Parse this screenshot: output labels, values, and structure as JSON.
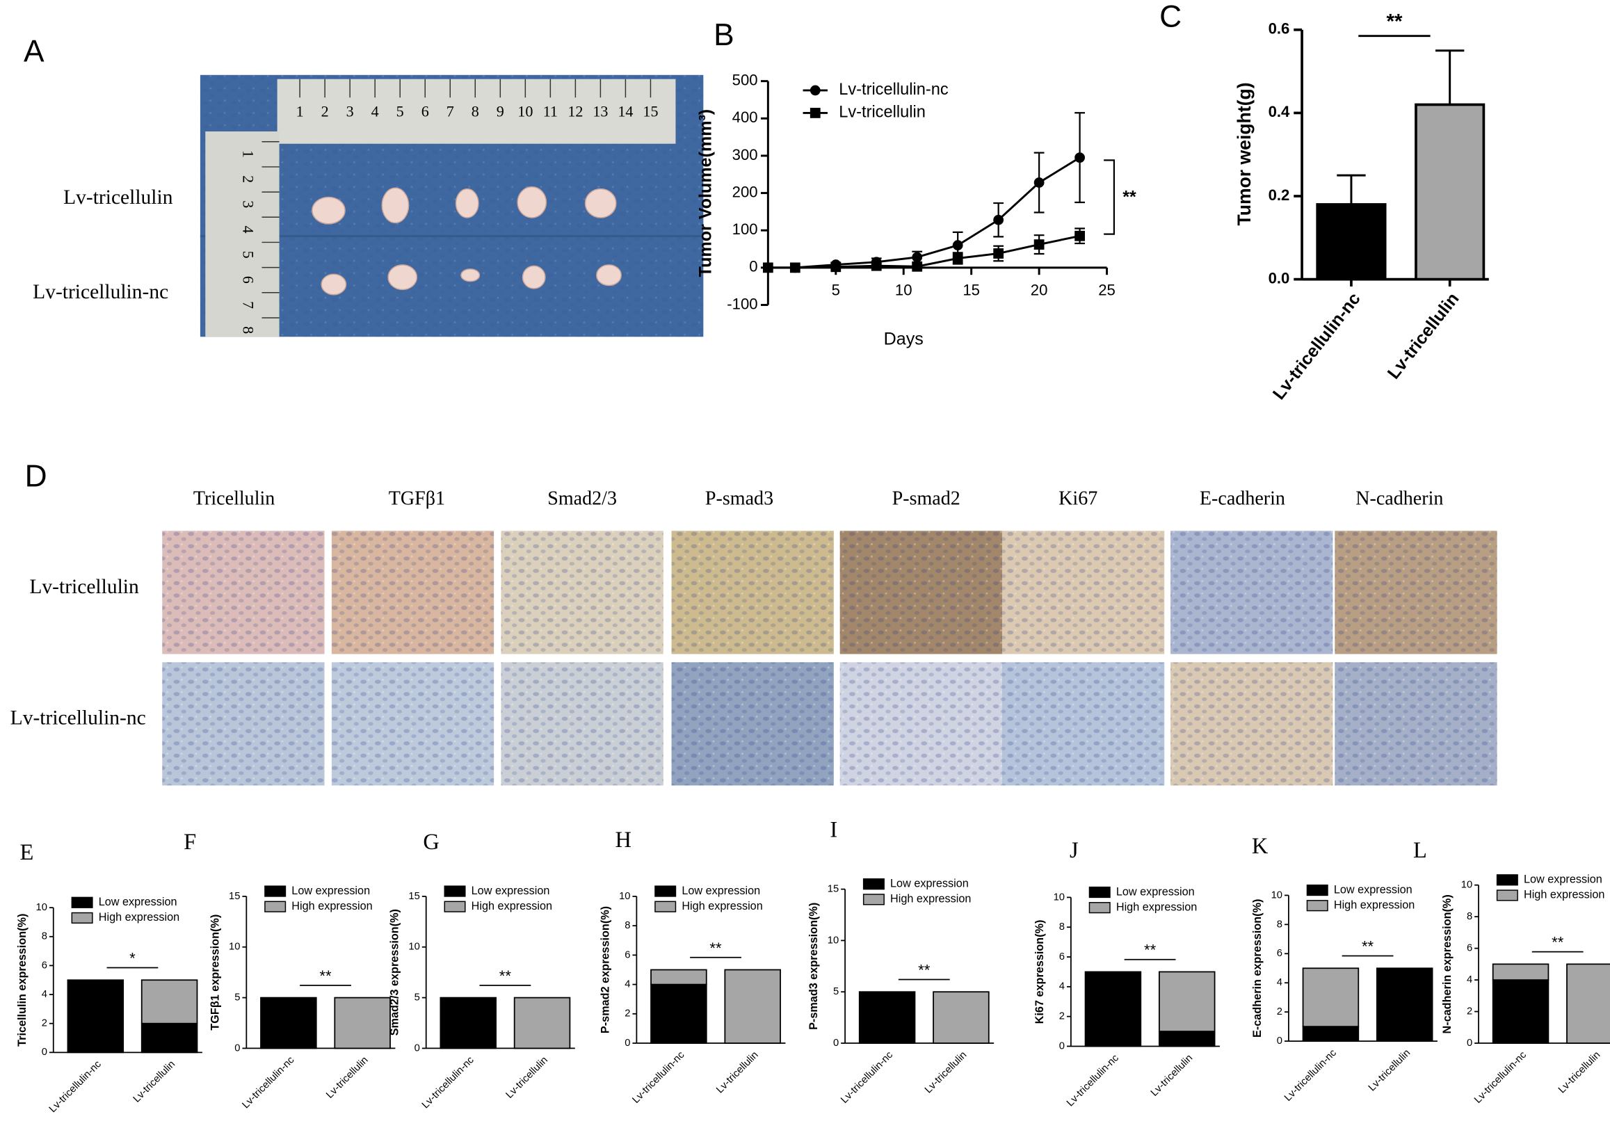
{
  "panel_A": {
    "panel": "A",
    "row_labels": [
      "Lv-tricellulin",
      "Lv-tricellulin-nc"
    ],
    "ruler_top": [
      "1",
      "2",
      "3",
      "4",
      "5",
      "6",
      "7",
      "8",
      "9",
      "10",
      "11",
      "12",
      "13",
      "14",
      "15"
    ],
    "ruler_side": [
      "1",
      "2",
      "3",
      "4",
      "5",
      "6",
      "7",
      "8"
    ]
  },
  "panel_D": {
    "panel": "D",
    "columns": [
      "Tricellulin",
      "TGFβ1",
      "Smad2/3",
      "P-smad3",
      "P-smad2",
      "Ki67",
      "E-cadherin",
      "N-cadherin"
    ],
    "rows": [
      "Lv-tricellulin",
      "Lv-tricellulin-nc"
    ]
  },
  "chart_data": [
    {
      "type": "line",
      "panel": "B",
      "xlabel": "Days",
      "ylabel": "Tumor Volume(mm³)",
      "xlim": [
        0,
        25
      ],
      "xticks": [
        5,
        10,
        15,
        20,
        25
      ],
      "ylim": [
        -100,
        500
      ],
      "yticks": [
        -100,
        0,
        100,
        200,
        300,
        400,
        500
      ],
      "annotation": "**",
      "x": [
        0,
        2,
        5,
        8,
        11,
        14,
        17,
        20,
        23
      ],
      "series": [
        {
          "name": "Lv-tricellulin-nc",
          "color": "#000000",
          "marker": "circle",
          "values": [
            0,
            0,
            8,
            15,
            28,
            60,
            128,
            228,
            295
          ],
          "errors": [
            0,
            0,
            5,
            10,
            15,
            35,
            45,
            80,
            120
          ]
        },
        {
          "name": "Lv-tricellulin",
          "color": "#000000",
          "marker": "square",
          "values": [
            0,
            0,
            2,
            5,
            3,
            25,
            38,
            62,
            85
          ],
          "errors": [
            0,
            0,
            3,
            5,
            5,
            15,
            20,
            25,
            20
          ]
        }
      ]
    },
    {
      "type": "bar",
      "panel": "C",
      "ylabel": "Tumor weight(g)",
      "categories": [
        "Lv-tricellulin-nc",
        "Lv-tricellulin"
      ],
      "values": [
        0.18,
        0.42
      ],
      "errors": [
        0.07,
        0.13
      ],
      "colors": [
        "#000000",
        "#a6a6a6"
      ],
      "ylim": [
        0,
        0.6
      ],
      "yticks": [
        {
          "value": 0,
          "label": "0.0"
        },
        0.2,
        0.4,
        0.6
      ],
      "annotation": "**"
    },
    {
      "type": "bar",
      "stacked": true,
      "panel": "E",
      "ylabel": "Tricellulin expression(%)",
      "categories": [
        "Lv-tricellulin-nc",
        "Lv-tricellulin"
      ],
      "series": [
        {
          "name": "Low expression",
          "color": "#000000",
          "values": [
            5,
            2
          ]
        },
        {
          "name": "High expression",
          "color": "#a6a6a6",
          "values": [
            0,
            3
          ]
        }
      ],
      "ylim": [
        0,
        10
      ],
      "yticks": [
        0,
        2,
        4,
        6,
        8,
        10
      ],
      "annotation": "*"
    },
    {
      "type": "bar",
      "stacked": true,
      "panel": "F",
      "ylabel": "TGFβ1 expression(%)",
      "categories": [
        "Lv-tricellulin-nc",
        "Lv-tricellulin"
      ],
      "series": [
        {
          "name": "Low expression",
          "color": "#000000",
          "values": [
            5,
            0
          ]
        },
        {
          "name": "High expression",
          "color": "#a6a6a6",
          "values": [
            0,
            5
          ]
        }
      ],
      "ylim": [
        0,
        15
      ],
      "yticks": [
        0,
        5,
        10,
        15
      ],
      "annotation": "**"
    },
    {
      "type": "bar",
      "stacked": true,
      "panel": "G",
      "ylabel": "Smad2/3 expression(%)",
      "categories": [
        "Lv-tricellulin-nc",
        "Lv-tricellulin"
      ],
      "series": [
        {
          "name": "Low expression",
          "color": "#000000",
          "values": [
            5,
            0
          ]
        },
        {
          "name": "High expression",
          "color": "#a6a6a6",
          "values": [
            0,
            5
          ]
        }
      ],
      "ylim": [
        0,
        15
      ],
      "yticks": [
        0,
        5,
        10,
        15
      ],
      "annotation": "**"
    },
    {
      "type": "bar",
      "stacked": true,
      "panel": "H",
      "ylabel": "P-smad2 expression(%)",
      "categories": [
        "Lv-tricellulin-nc",
        "Lv-tricellulin"
      ],
      "series": [
        {
          "name": "Low expression",
          "color": "#000000",
          "values": [
            4,
            0
          ]
        },
        {
          "name": "High expression",
          "color": "#a6a6a6",
          "values": [
            1,
            5
          ]
        }
      ],
      "ylim": [
        0,
        10
      ],
      "yticks": [
        0,
        2,
        4,
        6,
        8,
        10
      ],
      "annotation": "**"
    },
    {
      "type": "bar",
      "stacked": true,
      "panel": "I",
      "ylabel": "P-smad3 expression(%)",
      "categories": [
        "Lv-tricellulin-nc",
        "Lv-tricellulin"
      ],
      "series": [
        {
          "name": "Low expression",
          "color": "#000000",
          "values": [
            5,
            0
          ]
        },
        {
          "name": "High expression",
          "color": "#a6a6a6",
          "values": [
            0,
            5
          ]
        }
      ],
      "ylim": [
        0,
        15
      ],
      "yticks": [
        0,
        5,
        10,
        15
      ],
      "annotation": "**"
    },
    {
      "type": "bar",
      "stacked": true,
      "panel": "J",
      "ylabel": "Ki67 expression(%)",
      "categories": [
        "Lv-tricellulin-nc",
        "Lv-tricellulin"
      ],
      "series": [
        {
          "name": "Low expression",
          "color": "#000000",
          "values": [
            5,
            1
          ]
        },
        {
          "name": "High expression",
          "color": "#a6a6a6",
          "values": [
            0,
            4
          ]
        }
      ],
      "ylim": [
        0,
        10
      ],
      "yticks": [
        0,
        2,
        4,
        6,
        8,
        10
      ],
      "annotation": "**"
    },
    {
      "type": "bar",
      "stacked": true,
      "panel": "K",
      "ylabel": "E-cadherin expression(%)",
      "categories": [
        "Lv-tricellulin-nc",
        "Lv-tricellulin"
      ],
      "series": [
        {
          "name": "Low expression",
          "color": "#000000",
          "values": [
            1,
            5
          ]
        },
        {
          "name": "High expression",
          "color": "#a6a6a6",
          "values": [
            4,
            0
          ]
        }
      ],
      "ylim": [
        0,
        10
      ],
      "yticks": [
        0,
        2,
        4,
        6,
        8,
        10
      ],
      "annotation": "**"
    },
    {
      "type": "bar",
      "stacked": true,
      "panel": "L",
      "ylabel": "N-cadherin expression(%)",
      "categories": [
        "Lv-tricellulin-nc",
        "Lv-tricellulin"
      ],
      "series": [
        {
          "name": "Low expression",
          "color": "#000000",
          "values": [
            4,
            0
          ]
        },
        {
          "name": "High expression",
          "color": "#a6a6a6",
          "values": [
            1,
            5
          ]
        }
      ],
      "ylim": [
        0,
        10
      ],
      "yticks": [
        0,
        2,
        4,
        6,
        8,
        10
      ],
      "annotation": "**"
    }
  ]
}
